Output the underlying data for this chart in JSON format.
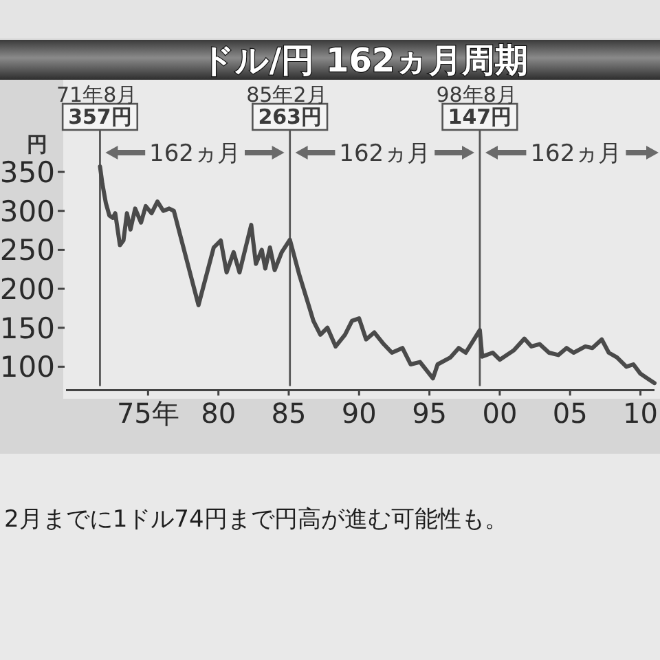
{
  "chart_data": {
    "type": "line",
    "title": "ドル/円 162ヵ月周期",
    "ylabel": "円",
    "x": [
      "1971-08",
      "1971-10",
      "1972-01",
      "1972-04",
      "1972-07",
      "1972-09",
      "1973-01",
      "1973-04",
      "1973-07",
      "1973-10",
      "1974-02",
      "1974-07",
      "1974-11",
      "1975-04",
      "1975-09",
      "1976-02",
      "1976-07",
      "1976-11",
      "1978-08",
      "1979-09",
      "1980-03",
      "1980-08",
      "1981-02",
      "1981-07",
      "1982-05",
      "1982-09",
      "1983-02",
      "1983-05",
      "1983-09",
      "1984-01",
      "1984-07",
      "1985-02",
      "1985-10",
      "1986-07",
      "1986-10",
      "1987-04",
      "1987-10",
      "1988-05",
      "1989-01",
      "1989-07",
      "1990-01",
      "1990-07",
      "1991-02",
      "1991-10",
      "1992-05",
      "1993-02",
      "1993-09",
      "1994-05",
      "1995-04",
      "1995-08",
      "1996-07",
      "1997-02",
      "1997-08",
      "1998-08",
      "1998-10",
      "1999-07",
      "2000-01",
      "2001-01",
      "2001-10",
      "2002-04",
      "2002-11",
      "2003-07",
      "2004-03",
      "2004-10",
      "2005-04",
      "2006-02",
      "2006-08",
      "2007-04",
      "2007-10",
      "2008-05",
      "2009-01",
      "2009-07",
      "2010-01",
      "2010-07",
      "2011-01"
    ],
    "values": [
      357,
      335,
      310,
      294,
      291,
      297,
      256,
      262,
      297,
      276,
      303,
      285,
      306,
      297,
      312,
      300,
      303,
      300,
      179,
      253,
      262,
      221,
      247,
      221,
      282,
      232,
      250,
      226,
      253,
      224,
      247,
      263,
      218,
      174,
      159,
      141,
      150,
      126,
      141,
      159,
      162,
      135,
      144,
      129,
      118,
      124,
      103,
      106,
      85,
      103,
      112,
      124,
      118,
      147,
      113,
      118,
      109,
      121,
      136,
      126,
      129,
      118,
      115,
      124,
      118,
      126,
      124,
      135,
      118,
      112,
      100,
      103,
      91,
      85,
      79
    ],
    "color": "#4a4a4a",
    "xlim": [
      "1969-03",
      "2011-01"
    ],
    "ylim": [
      70,
      400
    ],
    "xticks": [
      {
        "value": "1975",
        "label": "75年"
      },
      {
        "value": "1980",
        "label": "80"
      },
      {
        "value": "1985",
        "label": "85"
      },
      {
        "value": "1990",
        "label": "90"
      },
      {
        "value": "1995",
        "label": "95"
      },
      {
        "value": "2000",
        "label": "00"
      },
      {
        "value": "2005",
        "label": "05"
      },
      {
        "value": "2010",
        "label": "10"
      }
    ],
    "yticks": [
      100,
      150,
      200,
      250,
      300,
      350
    ],
    "ref_lines": [
      {
        "axis": "x",
        "value": "1971-08",
        "label": "71年8月\n357円",
        "color": "#555555"
      },
      {
        "axis": "x",
        "value": "1985-02",
        "label": "85年2月\n263円",
        "color": "#555555"
      },
      {
        "axis": "x",
        "value": "1998-08",
        "label": "98年8月\n147円",
        "color": "#555555"
      }
    ],
    "annotations": [
      "162ヵ月",
      "162ヵ月",
      "162ヵ月",
      "2月までに1ドル74円まで円高が進む可能性も。"
    ]
  }
}
